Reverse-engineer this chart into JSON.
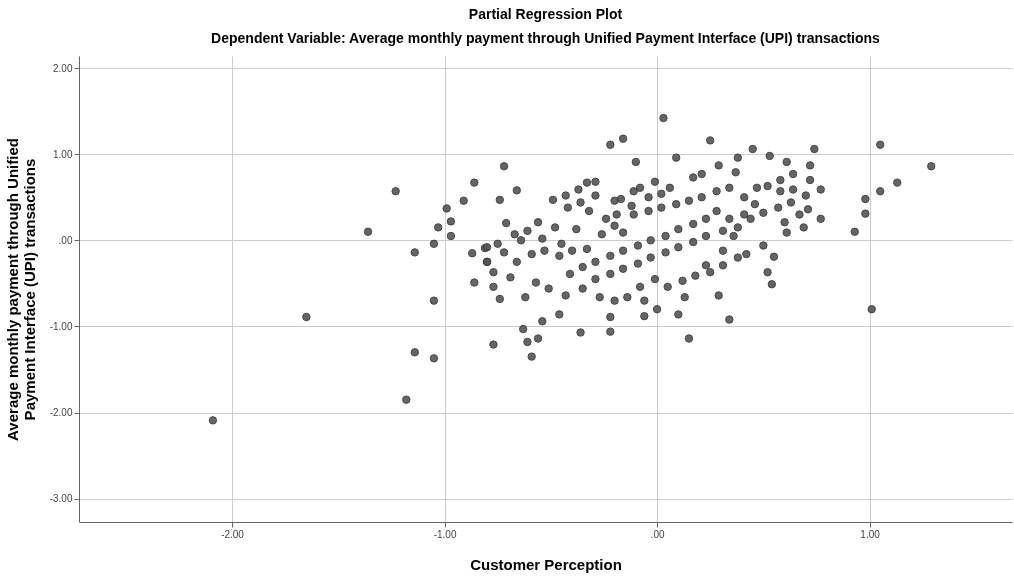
{
  "chart_data": {
    "type": "scatter",
    "title": "Partial Regression Plot",
    "subtitle": "Dependent Variable: Average monthly payment through Unified Payment Interface (UPI) transactions",
    "xlabel": "Customer Perception",
    "ylabel": "Average monthly payment through Unified Payment Interface (UPI) transactions",
    "xlim": [
      -2.72,
      1.67
    ],
    "ylim": [
      -3.27,
      2.14
    ],
    "xticks": [
      {
        "value": -2,
        "label": "-2.00"
      },
      {
        "value": -1,
        "label": "-1.00"
      },
      {
        "value": 0,
        "label": ".00"
      },
      {
        "value": 1,
        "label": "1.00"
      }
    ],
    "yticks": [
      {
        "value": -3,
        "label": "-3.00"
      },
      {
        "value": -2,
        "label": "-2.00"
      },
      {
        "value": -1,
        "label": "-1.00"
      },
      {
        "value": 0,
        "label": ".00"
      },
      {
        "value": 1,
        "label": "1.00"
      },
      {
        "value": 2,
        "label": "2.00"
      }
    ],
    "grid": true,
    "marker": "circle",
    "legend": false,
    "series": [
      {
        "color": "#555555",
        "x": [
          -1.65,
          -1.23,
          -1.36,
          -1.14,
          -1.05,
          -1.03,
          -0.99,
          -0.97,
          -0.97,
          -1.05,
          -0.91,
          -0.86,
          -0.87,
          -0.86,
          -0.81,
          -0.8,
          -0.77,
          -0.77,
          -0.74,
          -0.74,
          -0.72,
          -2.09,
          -1.18,
          -1.14,
          -1.05,
          -0.77,
          1.05,
          1.29,
          1.13,
          1.05,
          0.98,
          0.98,
          0.93,
          1.01,
          0.03,
          -0.22,
          -0.16,
          -0.1,
          0.09,
          0.25,
          0.45,
          0.74,
          0.38,
          0.53,
          0.61,
          0.72,
          0.77,
          0.77,
          0.64,
          0.58,
          0.72,
          0.7,
          0.71,
          0.61,
          0.69,
          0.55,
          0.52,
          0.54,
          0.34,
          0.29,
          0.1,
          0.0,
          -0.06,
          -0.22,
          -0.46,
          -0.54,
          -0.66,
          -0.71,
          0.15,
          -0.22,
          -0.36,
          -0.59,
          -0.61,
          -0.56,
          -0.63,
          -0.33,
          -0.29,
          -0.37,
          -0.43,
          -0.49,
          -0.29,
          -0.36,
          -0.42,
          -0.32,
          -0.2,
          -0.17,
          -0.11,
          -0.08,
          -0.01,
          0.06,
          0.02,
          -0.04,
          -0.12,
          -0.19,
          -0.24,
          -0.26,
          -0.2,
          -0.16,
          -0.11,
          -0.04,
          0.02,
          0.09,
          0.15,
          0.21,
          0.28,
          0.34,
          0.17,
          0.21,
          0.29,
          0.37,
          0.41,
          0.47,
          0.52,
          0.46,
          0.41,
          0.34,
          0.28,
          0.23,
          0.17,
          0.1,
          0.04,
          -0.03,
          -0.09,
          -0.16,
          -0.22,
          -0.29,
          -0.35,
          -0.41,
          -0.33,
          -0.4,
          -0.46,
          -0.53,
          -0.59,
          -0.66,
          -0.72,
          -0.75,
          -0.8,
          -0.8,
          -0.69,
          -0.57,
          -0.51,
          -0.43,
          -0.35,
          -0.29,
          -0.22,
          -0.16,
          -0.09,
          -0.03,
          0.04,
          0.1,
          0.17,
          0.23,
          0.31,
          0.38,
          0.44,
          0.5,
          0.57,
          0.63,
          0.6,
          0.67,
          0.64,
          0.58,
          0.5,
          0.42,
          0.38,
          0.31,
          0.25,
          0.18,
          0.12,
          0.05,
          -0.01,
          -0.08,
          -0.14,
          -0.2,
          -0.27,
          -0.06,
          0.13,
          0.23,
          0.31,
          0.36,
          -0.62,
          -0.56,
          -0.61,
          -0.67,
          -0.48,
          -0.38,
          -0.54,
          -0.45,
          -0.64
        ],
        "values": [
          -0.89,
          0.57,
          0.1,
          -0.14,
          -0.04,
          0.15,
          0.37,
          0.22,
          0.05,
          -0.7,
          0.46,
          0.67,
          -0.15,
          -0.49,
          -0.09,
          -0.25,
          -0.37,
          -0.54,
          -0.68,
          0.47,
          0.86,
          -2.09,
          -1.85,
          -1.3,
          -1.37,
          -1.21,
          1.11,
          0.86,
          0.67,
          0.57,
          0.48,
          0.31,
          0.1,
          -0.8,
          1.42,
          1.11,
          1.18,
          0.91,
          0.96,
          1.16,
          1.06,
          1.06,
          0.96,
          0.98,
          0.91,
          0.87,
          0.59,
          0.25,
          0.77,
          0.7,
          0.7,
          0.52,
          0.36,
          0.09,
          0.15,
          -0.19,
          -0.37,
          -0.51,
          -0.92,
          -0.64,
          -0.86,
          -0.8,
          -0.88,
          -0.89,
          -0.86,
          -0.94,
          0.58,
          0.2,
          -1.14,
          -1.06,
          -1.07,
          -1.35,
          -1.18,
          -1.14,
          -1.03,
          0.67,
          0.68,
          0.59,
          0.52,
          0.47,
          0.52,
          0.44,
          0.38,
          0.34,
          0.46,
          0.48,
          0.57,
          0.61,
          0.68,
          0.61,
          0.54,
          0.5,
          0.4,
          0.3,
          0.25,
          0.07,
          0.17,
          0.09,
          0.3,
          0.34,
          0.38,
          0.42,
          0.46,
          0.5,
          0.57,
          0.61,
          0.73,
          0.77,
          0.87,
          0.79,
          0.5,
          0.61,
          0.63,
          0.42,
          0.3,
          0.25,
          0.34,
          0.25,
          0.19,
          0.13,
          0.05,
          0.0,
          -0.06,
          -0.12,
          -0.18,
          -0.25,
          -0.31,
          -0.39,
          -0.1,
          -0.12,
          -0.18,
          -0.12,
          -0.16,
          -0.25,
          -0.14,
          -0.04,
          -0.08,
          -0.25,
          -0.43,
          -0.49,
          -0.56,
          -0.64,
          -0.56,
          -0.45,
          -0.39,
          -0.33,
          -0.27,
          -0.2,
          -0.14,
          -0.08,
          -0.02,
          0.05,
          0.11,
          0.15,
          0.25,
          0.32,
          0.38,
          0.44,
          0.21,
          0.3,
          0.59,
          0.57,
          -0.06,
          -0.16,
          -0.2,
          -0.29,
          -0.37,
          -0.41,
          -0.47,
          -0.54,
          -0.45,
          -0.54,
          -0.66,
          -0.7,
          -0.66,
          -0.7,
          -0.66,
          -0.29,
          -0.12,
          0.05,
          -0.66,
          0.21,
          0.11,
          0.07,
          0.15,
          0.13,
          0.02,
          -0.04,
          0.0
        ]
      }
    ]
  }
}
